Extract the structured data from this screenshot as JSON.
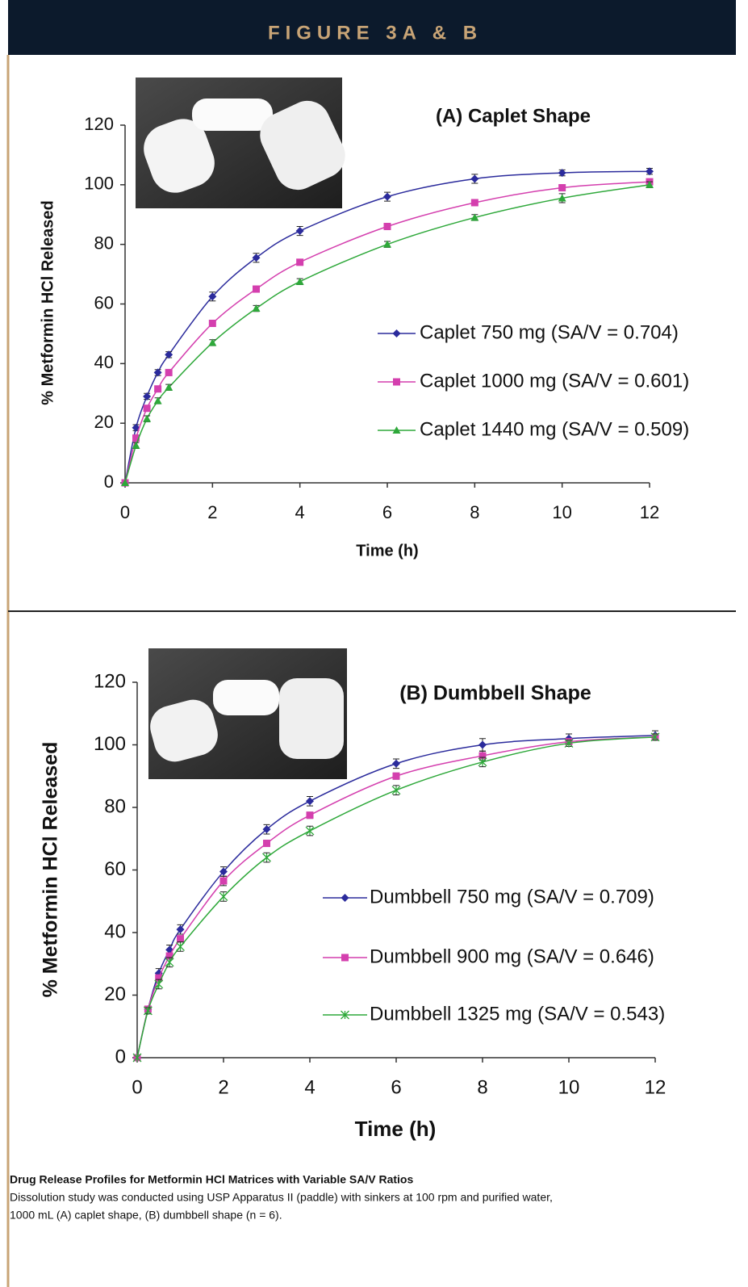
{
  "header": {
    "title": "FIGURE 3A & B"
  },
  "chart_data": [
    {
      "type": "line",
      "title": "(A) Caplet Shape",
      "xlabel": "Time (h)",
      "ylabel": "% Metformin HCl Released",
      "x": [
        0,
        0.25,
        0.5,
        0.75,
        1,
        2,
        3,
        4,
        6,
        8,
        10,
        12
      ],
      "xlim": [
        0,
        12
      ],
      "xticks": [
        0,
        2,
        4,
        6,
        8,
        10,
        12
      ],
      "ylim": [
        0,
        120
      ],
      "yticks": [
        0,
        20,
        40,
        60,
        80,
        100,
        120
      ],
      "grid": false,
      "series": [
        {
          "name": "Caplet 750 mg (SA/V = 0.704)",
          "color": "#2b2b9c",
          "marker": "diamond",
          "values": [
            0,
            18.5,
            29,
            37,
            43,
            62.5,
            75.5,
            84.5,
            96,
            102,
            104,
            104.5
          ],
          "errors": [
            0,
            1,
            1,
            1,
            1,
            1.5,
            1.5,
            1.5,
            1.5,
            1.5,
            1,
            1
          ]
        },
        {
          "name": "Caplet 1000 mg (SA/V = 0.601)",
          "color": "#d43fae",
          "marker": "square",
          "values": [
            0,
            15,
            25,
            31.5,
            37,
            53.5,
            65,
            74,
            86,
            94,
            99,
            101
          ],
          "errors": [
            0,
            1,
            1,
            1,
            1,
            1,
            1,
            1,
            1,
            1,
            1,
            1
          ]
        },
        {
          "name": "Caplet 1440 mg (SA/V = 0.509)",
          "color": "#2ea83a",
          "marker": "triangle",
          "values": [
            0,
            12.5,
            21.5,
            27.5,
            32,
            47,
            58.5,
            67.5,
            80,
            89,
            95.5,
            100
          ],
          "errors": [
            0,
            1,
            1,
            1,
            1,
            1,
            1,
            1,
            1,
            1,
            1.5,
            1
          ]
        }
      ]
    },
    {
      "type": "line",
      "title": "(B) Dumbbell Shape",
      "xlabel": "Time (h)",
      "ylabel": "% Metformin HCl Released",
      "x": [
        0,
        0.25,
        0.5,
        0.75,
        1,
        2,
        3,
        4,
        6,
        8,
        10,
        12
      ],
      "xlim": [
        0,
        12
      ],
      "xticks": [
        0,
        2,
        4,
        6,
        8,
        10,
        12
      ],
      "ylim": [
        0,
        120
      ],
      "yticks": [
        0,
        20,
        40,
        60,
        80,
        100,
        120
      ],
      "grid": false,
      "series": [
        {
          "name": "Dumbbell 750 mg (SA/V = 0.709)",
          "color": "#2b2b9c",
          "marker": "diamond",
          "values": [
            0,
            15.5,
            27,
            34.5,
            41,
            59.5,
            73,
            82,
            94,
            100,
            102,
            103
          ],
          "errors": [
            0,
            1,
            1.5,
            1.5,
            1.5,
            1.5,
            1.5,
            1.5,
            1.5,
            2,
            1.5,
            1.5
          ]
        },
        {
          "name": "Dumbbell 900 mg (SA/V = 0.646)",
          "color": "#d43fae",
          "marker": "square",
          "values": [
            0,
            15.5,
            25.5,
            32.5,
            38,
            56.5,
            68.5,
            77.5,
            90,
            96.5,
            101,
            102.5
          ],
          "errors": [
            0,
            1,
            1,
            1,
            1,
            1.5,
            1,
            1,
            1,
            1.5,
            1,
            1
          ]
        },
        {
          "name": "Dumbbell 1325 mg (SA/V = 0.543)",
          "color": "#2ea83a",
          "marker": "x",
          "values": [
            0,
            15,
            23.5,
            30.5,
            35.5,
            51.5,
            64,
            72.5,
            85.5,
            94.5,
            100.5,
            102.5
          ],
          "errors": [
            0,
            1,
            1.5,
            1.5,
            1.5,
            1.5,
            1.5,
            1.5,
            1.5,
            1.5,
            1,
            1
          ]
        }
      ]
    }
  ],
  "caption": {
    "title": "Drug Release Profiles for Metformin HCl Matrices with Variable SA/V Ratios",
    "lines": [
      "Dissolution study was conducted using USP Apparatus II (paddle) with sinkers at 100 rpm and purified water,",
      "1000 mL (A) caplet shape, (B) dumbbell shape (n = 6)."
    ]
  }
}
